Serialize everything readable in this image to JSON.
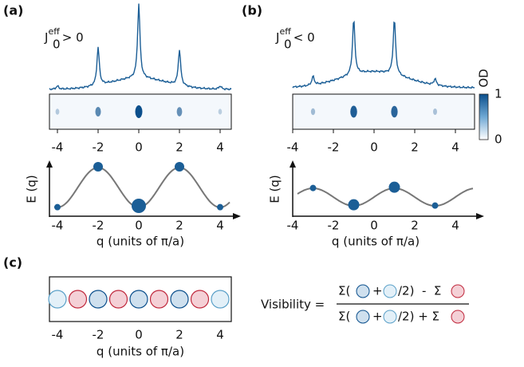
{
  "panels": [
    {
      "label": "(a)",
      "annotation": {
        "base": "J",
        "sub": "0",
        "sup": "eff",
        "relation": "> 0"
      },
      "xticks": [
        -4,
        -2,
        0,
        2,
        4
      ],
      "y_label": "E (q)",
      "x_label": "q (units of π/a)"
    },
    {
      "label": "(b)",
      "annotation": {
        "base": "J",
        "sub": "0",
        "sup": "eff",
        "relation": "< 0"
      },
      "xticks": [
        -4,
        -2,
        0,
        2,
        4
      ],
      "y_label": "E (q)",
      "x_label": "q (units of π/a)"
    }
  ],
  "colorbar": {
    "label": "OD",
    "ticks": [
      1,
      0
    ]
  },
  "panel_c": {
    "label": "(c)",
    "xticks": [
      -4,
      -2,
      0,
      2,
      4
    ],
    "x_label": "q (units of π/a)",
    "formula": {
      "lhs": "Visibility =",
      "numerator": [
        "Σ(",
        "+",
        "/2)  -  Σ"
      ],
      "denominator": [
        "Σ(",
        "+",
        "/2) + Σ"
      ]
    }
  }
}
